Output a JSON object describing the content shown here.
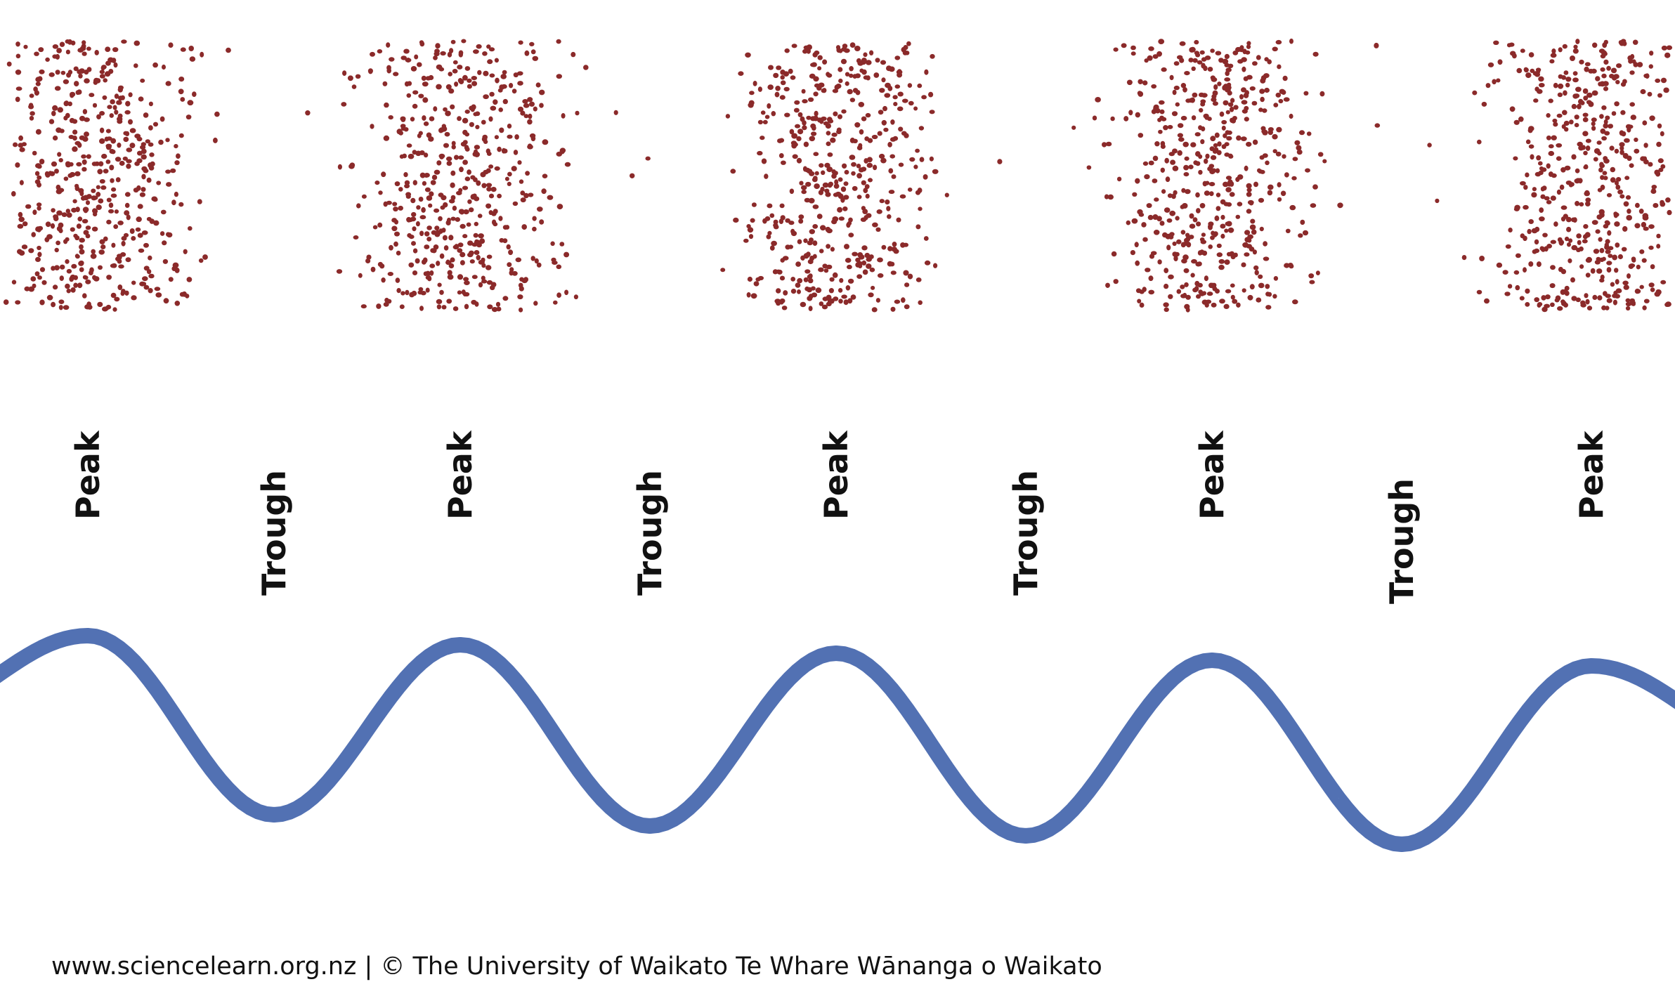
{
  "diagram": {
    "labels": {
      "peak": "Peak",
      "trough": "Trough"
    },
    "label_sequence": [
      "Peak",
      "Trough",
      "Peak",
      "Trough",
      "Peak",
      "Trough",
      "Peak",
      "Trough",
      "Peak"
    ],
    "colors": {
      "particles": "#8B2A2A",
      "wave": "#5271B3",
      "background": "#FFFFFF",
      "text": "#111111"
    }
  },
  "footer": {
    "credit": "www.sciencelearn.org.nz | © The University of Waikato Te Whare Wānanga o Waikato"
  }
}
